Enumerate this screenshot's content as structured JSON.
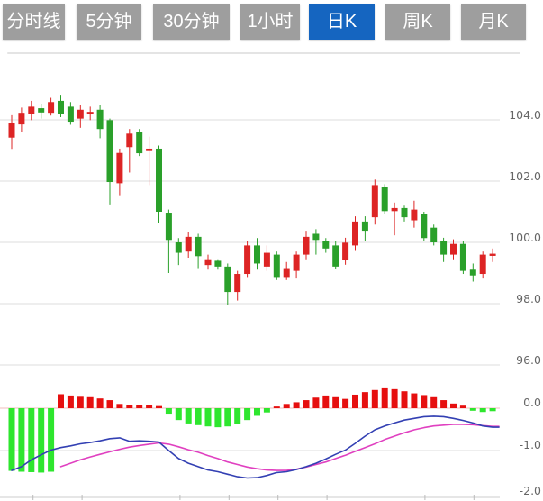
{
  "toolbar": {
    "tabs": [
      {
        "label": "分时线",
        "name": "tab-time-share-line",
        "active": false
      },
      {
        "label": "5分钟",
        "name": "tab-5-minute",
        "active": false
      },
      {
        "label": "30分钟",
        "name": "tab-30-minute",
        "active": false
      },
      {
        "label": "1小时",
        "name": "tab-1-hour",
        "active": false
      },
      {
        "label": "日K",
        "name": "tab-daily-k",
        "active": true
      },
      {
        "label": "周K",
        "name": "tab-weekly-k",
        "active": false
      },
      {
        "label": "月K",
        "name": "tab-monthly-k",
        "active": false
      }
    ],
    "active_bg": "#1565c0",
    "inactive_bg": "#9e9e9e"
  },
  "chart_data": {
    "type": "candlestick+macd",
    "price_axis": {
      "ticks": [
        104.0,
        102.0,
        100.0,
        98.0,
        96.0
      ],
      "labels": [
        "104.0",
        "102.0",
        "100.0",
        "98.0",
        "96.0"
      ]
    },
    "macd_axis": {
      "ticks": [
        0.0,
        -1.0,
        -2.0
      ],
      "labels": [
        "0.0",
        "-1.0",
        "-2.0"
      ]
    },
    "colors": {
      "up": "#dd2424",
      "down": "#2aa02a",
      "hist_up": "#e60f0f",
      "hist_down": "#2ee62e",
      "dif_line": "#3340b3",
      "dea_line": "#e040c0",
      "grid": "#dddddd",
      "zero_line": "#f0bcbc",
      "axis_line": "#cccccc",
      "axis_text": "#666666"
    },
    "candles_format": [
      "open",
      "close",
      "high",
      "low"
    ],
    "candles": [
      [
        103.42,
        103.9,
        104.15,
        103.05
      ],
      [
        103.85,
        104.23,
        104.4,
        103.6
      ],
      [
        104.18,
        104.43,
        104.62,
        103.99
      ],
      [
        104.38,
        104.24,
        104.53,
        104.04
      ],
      [
        104.23,
        104.58,
        104.72,
        104.14
      ],
      [
        104.62,
        104.19,
        104.82,
        104.09
      ],
      [
        104.43,
        103.94,
        104.58,
        103.84
      ],
      [
        104.04,
        104.33,
        104.48,
        103.74
      ],
      [
        104.2,
        104.26,
        104.43,
        103.99
      ],
      [
        104.33,
        103.7,
        104.48,
        103.4
      ],
      [
        103.99,
        101.97,
        104.04,
        101.24
      ],
      [
        101.93,
        102.92,
        103.06,
        101.54
      ],
      [
        103.11,
        103.55,
        103.7,
        102.28
      ],
      [
        103.6,
        102.91,
        103.7,
        102.82
      ],
      [
        102.98,
        103.06,
        103.45,
        101.87
      ],
      [
        103.06,
        101.0,
        103.16,
        100.63
      ],
      [
        100.97,
        100.08,
        101.07,
        99.0
      ],
      [
        100.0,
        99.66,
        100.14,
        99.26
      ],
      [
        99.7,
        100.18,
        100.33,
        99.5
      ],
      [
        100.18,
        99.55,
        100.28,
        99.16
      ],
      [
        99.26,
        99.45,
        99.6,
        99.11
      ],
      [
        99.4,
        99.21,
        99.45,
        99.11
      ],
      [
        99.21,
        98.38,
        99.31,
        97.95
      ],
      [
        98.38,
        98.97,
        99.07,
        98.1
      ],
      [
        98.97,
        99.9,
        100.04,
        98.87
      ],
      [
        99.9,
        99.31,
        100.14,
        99.11
      ],
      [
        99.21,
        99.66,
        99.9,
        99.07
      ],
      [
        99.6,
        98.87,
        99.7,
        98.77
      ],
      [
        98.87,
        99.16,
        99.36,
        98.77
      ],
      [
        99.07,
        99.6,
        99.7,
        98.82
      ],
      [
        99.6,
        100.18,
        100.38,
        99.45
      ],
      [
        100.28,
        100.08,
        100.43,
        99.6
      ],
      [
        100.04,
        99.8,
        100.14,
        99.66
      ],
      [
        99.9,
        99.21,
        100.04,
        99.12
      ],
      [
        99.42,
        99.99,
        100.15,
        99.27
      ],
      [
        99.9,
        100.68,
        100.85,
        99.75
      ],
      [
        100.68,
        100.38,
        100.85,
        100.04
      ],
      [
        100.82,
        101.87,
        102.05,
        100.58
      ],
      [
        101.82,
        101.02,
        101.9,
        100.92
      ],
      [
        101.02,
        101.12,
        101.3,
        100.23
      ],
      [
        101.12,
        100.82,
        101.2,
        100.68
      ],
      [
        100.72,
        101.07,
        101.36,
        100.48
      ],
      [
        100.92,
        100.14,
        101.0,
        100.04
      ],
      [
        100.48,
        100.0,
        100.58,
        99.9
      ],
      [
        100.04,
        99.6,
        100.15,
        99.36
      ],
      [
        99.6,
        99.95,
        100.1,
        99.45
      ],
      [
        99.95,
        99.07,
        100.04,
        98.97
      ],
      [
        99.11,
        98.92,
        99.31,
        98.72
      ],
      [
        98.97,
        99.6,
        99.7,
        98.82
      ],
      [
        99.56,
        99.63,
        99.8,
        99.36
      ]
    ],
    "macd_histogram": [
      -1.48,
      -1.5,
      -1.51,
      -1.52,
      -1.5,
      0.33,
      0.3,
      0.27,
      0.26,
      0.23,
      0.19,
      0.1,
      0.07,
      0.08,
      0.07,
      0.05,
      -0.15,
      -0.28,
      -0.36,
      -0.4,
      -0.43,
      -0.45,
      -0.43,
      -0.38,
      -0.28,
      -0.18,
      -0.1,
      0.04,
      0.1,
      0.14,
      0.19,
      0.25,
      0.3,
      0.26,
      0.22,
      0.32,
      0.38,
      0.43,
      0.47,
      0.45,
      0.4,
      0.35,
      0.31,
      0.26,
      0.19,
      0.11,
      0.06,
      -0.06,
      -0.09,
      -0.07
    ],
    "dif": [
      -1.47,
      -1.38,
      -1.22,
      -1.1,
      -0.99,
      -0.93,
      -0.89,
      -0.84,
      -0.81,
      -0.77,
      -0.72,
      -0.7,
      -0.78,
      -0.77,
      -0.78,
      -0.8,
      -1.0,
      -1.19,
      -1.3,
      -1.38,
      -1.46,
      -1.5,
      -1.56,
      -1.62,
      -1.65,
      -1.64,
      -1.59,
      -1.52,
      -1.5,
      -1.45,
      -1.38,
      -1.3,
      -1.2,
      -1.09,
      -0.99,
      -0.83,
      -0.66,
      -0.51,
      -0.42,
      -0.35,
      -0.28,
      -0.24,
      -0.2,
      -0.19,
      -0.2,
      -0.24,
      -0.29,
      -0.35,
      -0.42,
      -0.45
    ],
    "dea": [
      null,
      null,
      null,
      null,
      null,
      -1.38,
      -1.3,
      -1.22,
      -1.15,
      -1.09,
      -1.03,
      -0.97,
      -0.92,
      -0.88,
      -0.85,
      -0.82,
      -0.85,
      -0.91,
      -0.98,
      -1.04,
      -1.12,
      -1.19,
      -1.27,
      -1.33,
      -1.39,
      -1.43,
      -1.46,
      -1.47,
      -1.47,
      -1.44,
      -1.39,
      -1.33,
      -1.27,
      -1.19,
      -1.11,
      -1.02,
      -0.93,
      -0.84,
      -0.74,
      -0.66,
      -0.58,
      -0.51,
      -0.46,
      -0.42,
      -0.4,
      -0.38,
      -0.38,
      -0.39,
      -0.41,
      -0.43
    ]
  }
}
